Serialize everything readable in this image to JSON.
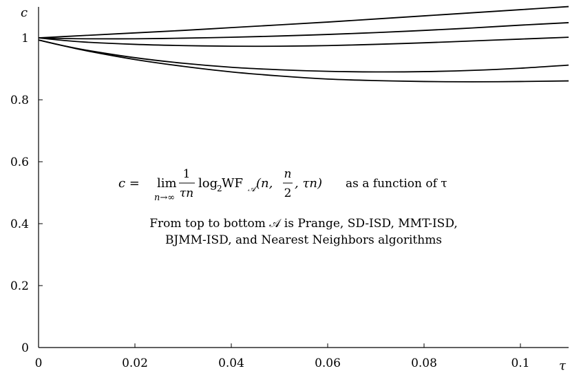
{
  "chart_data": {
    "type": "line",
    "xlabel": "τ",
    "ylabel": "c",
    "xlim": [
      0,
      0.11
    ],
    "ylim": [
      0,
      1.1
    ],
    "x_ticks": [
      0,
      0.02,
      0.04,
      0.06,
      0.08,
      0.1
    ],
    "x_tick_labels": [
      "0",
      "0.02",
      "0.04",
      "0.06",
      "0.08",
      "0.1"
    ],
    "y_ticks": [
      0,
      0.2,
      0.4,
      0.6,
      0.8,
      1
    ],
    "y_tick_labels": [
      "0",
      "0.2",
      "0.4",
      "0.6",
      "0.8",
      "1"
    ],
    "grid": false,
    "x": [
      0,
      0.005,
      0.01,
      0.02,
      0.03,
      0.04,
      0.05,
      0.06,
      0.07,
      0.08,
      0.09,
      0.1,
      0.11
    ],
    "series": [
      {
        "values": [
          1.0,
          1.004,
          1.008,
          1.016,
          1.024,
          1.033,
          1.042,
          1.051,
          1.061,
          1.071,
          1.081,
          1.091,
          1.101
        ]
      },
      {
        "values": [
          1.0,
          0.998,
          0.997,
          0.997,
          0.999,
          1.002,
          1.006,
          1.011,
          1.017,
          1.024,
          1.032,
          1.041,
          1.049
        ]
      },
      {
        "values": [
          1.0,
          0.992,
          0.986,
          0.979,
          0.975,
          0.973,
          0.973,
          0.975,
          0.979,
          0.984,
          0.99,
          0.996,
          1.002
        ]
      },
      {
        "values": [
          0.993,
          0.975,
          0.96,
          0.936,
          0.918,
          0.905,
          0.897,
          0.892,
          0.89,
          0.891,
          0.895,
          0.902,
          0.912
        ]
      },
      {
        "values": [
          0.993,
          0.975,
          0.958,
          0.93,
          0.908,
          0.89,
          0.877,
          0.867,
          0.862,
          0.859,
          0.858,
          0.859,
          0.861
        ]
      }
    ],
    "annotation": {
      "formula_lhs": "c = ",
      "formula_lim": "lim",
      "formula_lim_sub": "n→∞",
      "formula_frac_num": "1",
      "formula_frac_den": "τn",
      "formula_log": "log",
      "formula_log_sub": "2",
      "formula_wf": " WF",
      "formula_wf_sub": "𝒜",
      "formula_args_open": "(n, ",
      "formula_half_num": "n",
      "formula_half_den": "2",
      "formula_args_close": ", τn)",
      "formula_tail": "as a function of τ",
      "line1": "From top to bottom 𝒜 is Prange, SD-ISD, MMT-ISD,",
      "line2": "BJMM-ISD, and Nearest Neighbors algorithms"
    }
  }
}
